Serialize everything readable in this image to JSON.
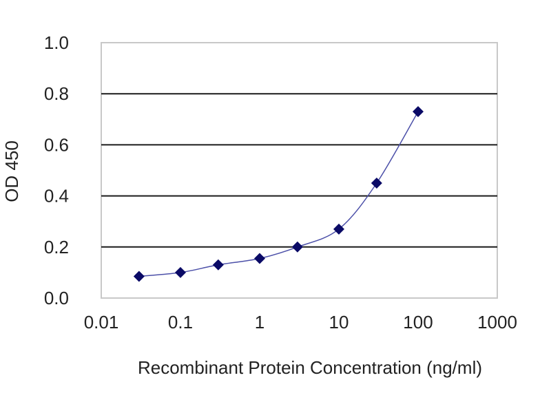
{
  "chart_data": {
    "type": "scatter",
    "xlabel": "Recombinant Protein Concentration (ng/ml)",
    "ylabel": "OD 450",
    "xscale": "log",
    "xlim": [
      0.01,
      1000
    ],
    "ylim": [
      0.0,
      1.0
    ],
    "xticks": [
      0.01,
      0.1,
      1,
      10,
      100,
      1000
    ],
    "xtick_labels": [
      "0.01",
      "0.1",
      "1",
      "10",
      "100",
      "1000"
    ],
    "yticks": [
      0.0,
      0.2,
      0.4,
      0.6,
      0.8,
      1.0
    ],
    "ytick_labels": [
      "0.0",
      "0.2",
      "0.4",
      "0.6",
      "0.8",
      "1.0"
    ],
    "grid": "horizontal",
    "legend": "none",
    "series": [
      {
        "marker": "diamond",
        "connected": true,
        "x": [
          0.03,
          0.1,
          0.3,
          1,
          3,
          10,
          30,
          100
        ],
        "y": [
          0.085,
          0.1,
          0.13,
          0.155,
          0.2,
          0.27,
          0.45,
          0.73
        ]
      }
    ],
    "colors": {
      "marker": "#0a0a66",
      "line": "#4b4fa8",
      "grid": "#1a1a1a",
      "frame": "#c8c8c8"
    }
  }
}
